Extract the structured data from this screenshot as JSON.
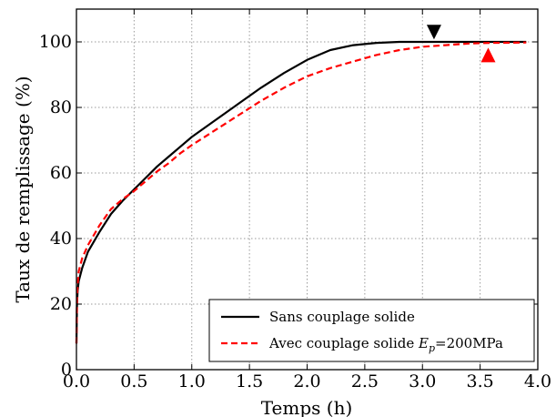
{
  "chart_data": {
    "type": "line",
    "xlabel": "Temps (h)",
    "ylabel": "Taux de remplissage (%)",
    "xlim": [
      0.0,
      4.0
    ],
    "ylim": [
      0,
      110
    ],
    "xticks": [
      0.0,
      0.5,
      1.0,
      1.5,
      2.0,
      2.5,
      3.0,
      3.5,
      4.0
    ],
    "xtick_labels": [
      "0.0",
      "0.5",
      "1.0",
      "1.5",
      "2.0",
      "2.5",
      "3.0",
      "3.5",
      "4.0"
    ],
    "yticks": [
      0,
      20,
      40,
      60,
      80,
      100
    ],
    "ytick_labels": [
      "0",
      "20",
      "40",
      "60",
      "80",
      "100"
    ],
    "grid": true,
    "legend_position": "lower-right",
    "series": [
      {
        "name": "Sans couplage solide",
        "color": "#000000",
        "style": "solid",
        "x": [
          0.0,
          0.005,
          0.01,
          0.02,
          0.05,
          0.1,
          0.2,
          0.3,
          0.4,
          0.5,
          0.6,
          0.7,
          0.8,
          0.9,
          1.0,
          1.2,
          1.4,
          1.6,
          1.8,
          2.0,
          2.2,
          2.4,
          2.6,
          2.8,
          2.9,
          3.0,
          3.1,
          3.5,
          3.9
        ],
        "y": [
          8,
          20,
          24,
          27,
          31,
          36,
          42,
          47.5,
          51.5,
          55,
          58.5,
          62,
          65,
          68,
          71,
          76,
          81,
          86,
          90.5,
          94.5,
          97.5,
          99,
          99.7,
          100,
          100,
          100,
          100,
          100,
          100
        ]
      },
      {
        "name": "Avec couplage solide E_p=200MPa",
        "color": "#ff0000",
        "style": "dashed",
        "x": [
          0.0,
          0.005,
          0.01,
          0.02,
          0.05,
          0.1,
          0.2,
          0.3,
          0.4,
          0.5,
          0.6,
          0.7,
          0.8,
          0.9,
          1.0,
          1.2,
          1.4,
          1.6,
          1.8,
          2.0,
          2.2,
          2.4,
          2.6,
          2.8,
          3.0,
          3.2,
          3.4,
          3.5,
          3.6,
          3.9
        ],
        "y": [
          8,
          21,
          26,
          30,
          34,
          38,
          44,
          49,
          52,
          54.5,
          57.5,
          60.5,
          63,
          66,
          68.5,
          73,
          77.5,
          82,
          86,
          89.5,
          92,
          94,
          96,
          97.5,
          98.5,
          99,
          99.5,
          99.6,
          99.7,
          99.8
        ]
      }
    ],
    "markers": [
      {
        "series": "Sans couplage solide",
        "shape": "triangle-down",
        "color": "#000000",
        "x": 3.1,
        "y": 103
      },
      {
        "series": "Avec couplage solide E_p=200MPa",
        "shape": "triangle-up",
        "color": "#ff0000",
        "x": 3.57,
        "y": 96
      }
    ]
  },
  "legend": {
    "items": [
      {
        "text": "Sans couplage solide",
        "color": "#000000",
        "style": "solid"
      },
      {
        "prefix": "Avec couplage solide ",
        "symbol": "E",
        "subscript": "p",
        "suffix": "=200MPa",
        "color": "#ff0000",
        "style": "dashed"
      }
    ]
  }
}
